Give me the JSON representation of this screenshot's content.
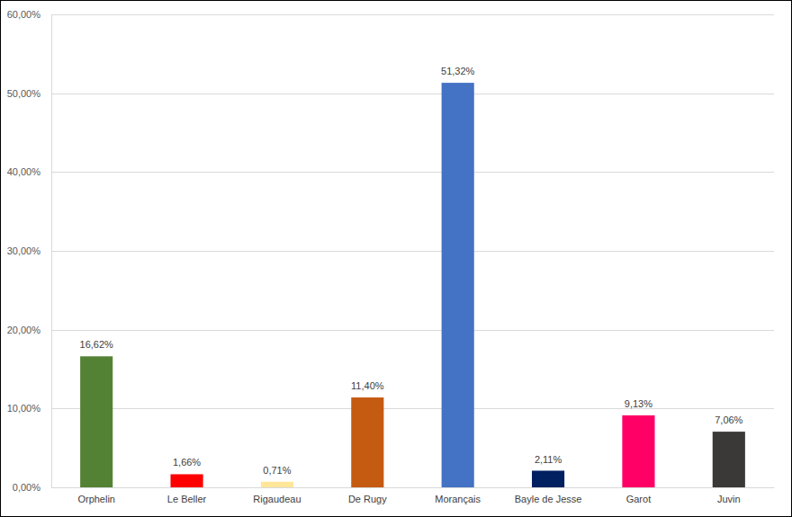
{
  "chart_data": {
    "type": "bar",
    "categories": [
      "Orphelin",
      "Le Beller",
      "Rigaudeau",
      "De Rugy",
      "Morançais",
      "Bayle de Jesse",
      "Garot",
      "Juvin"
    ],
    "values": [
      16.62,
      1.66,
      0.71,
      11.4,
      51.32,
      2.11,
      9.13,
      7.06
    ],
    "value_labels": [
      "16,62%",
      "1,66%",
      "0,71%",
      "11,40%",
      "51,32%",
      "2,11%",
      "9,13%",
      "7,06%"
    ],
    "colors": [
      "#548235",
      "#ff0000",
      "#ffe699",
      "#c55a11",
      "#4472c4",
      "#002060",
      "#ff0066",
      "#3b3838"
    ],
    "ylim": [
      0,
      60
    ],
    "yticks": [
      {
        "value": 0,
        "label": "0,00%"
      },
      {
        "value": 10,
        "label": "10,00%"
      },
      {
        "value": 20,
        "label": "20,00%"
      },
      {
        "value": 30,
        "label": "30,00%"
      },
      {
        "value": 40,
        "label": "40,00%"
      },
      {
        "value": 50,
        "label": "50,00%"
      },
      {
        "value": 60,
        "label": "60,00%"
      }
    ],
    "grid": true,
    "data_labels": true
  }
}
